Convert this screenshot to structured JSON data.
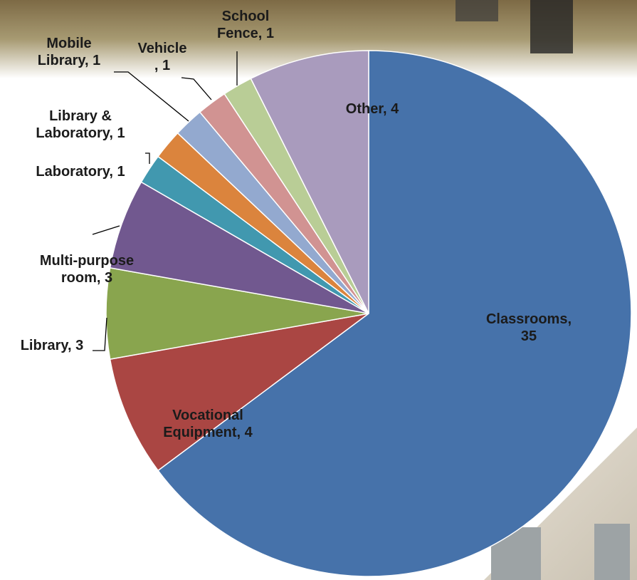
{
  "chart_data": {
    "type": "pie",
    "categories": [
      "Classrooms",
      "Vocational Equipment",
      "Library",
      "Multi-purpose room",
      "Laboratory",
      "Library & Laboratory",
      "Mobile Library",
      "Vehicle",
      "School Fence",
      "Other"
    ],
    "values": [
      35,
      4,
      3,
      3,
      1,
      1,
      1,
      1,
      1,
      4
    ],
    "value_labels": [
      "Classrooms,\n35",
      "Vocational\nEquipment, 4",
      "Library, 3",
      "Multi-purpose\nroom, 3",
      "Laboratory, 1",
      "Library &\nLaboratory, 1",
      "Mobile\nLibrary, 1",
      "Vehicle\n, 1",
      "School\nFence, 1",
      "Other, 4"
    ],
    "colors": [
      "#4672aa",
      "#aa4643",
      "#89a54e",
      "#71588f",
      "#4198af",
      "#db843d",
      "#93a9cf",
      "#d19392",
      "#b9cd96",
      "#a99bbd"
    ]
  }
}
